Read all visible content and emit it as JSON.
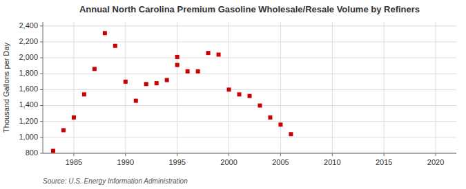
{
  "chart_data": {
    "type": "scatter",
    "title": "Annual North Carolina Premium Gasoline Wholesale/Resale Volume by Refiners",
    "y_label": "Thousand Gallons per Day",
    "source": "Source: U.S. Energy Information Administration",
    "x": [
      1983,
      1984,
      1985,
      1986,
      1987,
      1988,
      1989,
      1990,
      1991,
      1992,
      1993,
      1994,
      1995,
      1995,
      1996,
      1997,
      1998,
      1999,
      2000,
      2001,
      2002,
      2003,
      2004,
      2005,
      2006
    ],
    "values": [
      830,
      1090,
      1250,
      1540,
      1860,
      2310,
      2150,
      1700,
      1460,
      1670,
      1680,
      1720,
      1910,
      2010,
      1830,
      1830,
      2060,
      2040,
      1600,
      1540,
      1520,
      1400,
      1250,
      1160,
      1040
    ],
    "color": "#cc0000",
    "marker": "square",
    "xlim": [
      1982,
      2022
    ],
    "ylim": [
      800,
      2450
    ],
    "xticks": [
      1985,
      1990,
      1995,
      2000,
      2005,
      2010,
      2015,
      2020
    ],
    "yticks": [
      800,
      {
        "value": 1000,
        "label": "1,000"
      },
      {
        "value": 1200,
        "label": "1,200"
      },
      {
        "value": 1400,
        "label": "1,400"
      },
      {
        "value": 1600,
        "label": "1,600"
      },
      {
        "value": 1800,
        "label": "1,800"
      },
      {
        "value": 2000,
        "label": "2,000"
      },
      {
        "value": 2200,
        "label": "2,200"
      },
      {
        "value": 2400,
        "label": "2,400"
      }
    ],
    "grid": true
  }
}
